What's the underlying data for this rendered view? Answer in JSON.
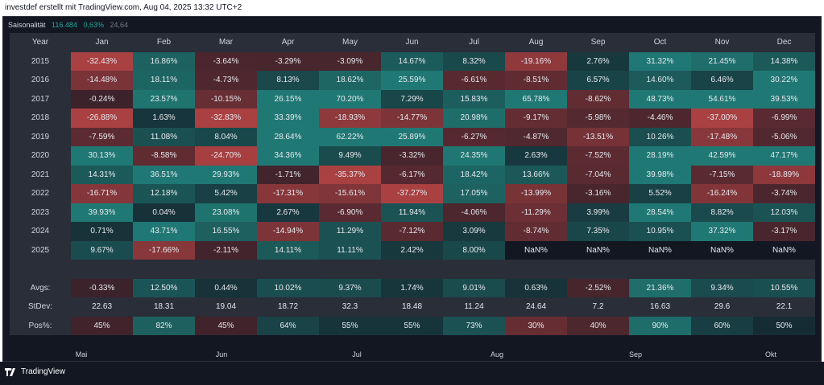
{
  "header": {
    "text": "investdef erstellt mit TradingView.com, Aug 04, 2025 13:32 UTC+2"
  },
  "legend": {
    "name": "Saisonalität",
    "v1": "116.484",
    "v2": "0,63%",
    "v3": "24,64"
  },
  "table": {
    "corner": "Year",
    "months": [
      "Jan",
      "Feb",
      "Mar",
      "Apr",
      "May",
      "Jun",
      "Jul",
      "Aug",
      "Sep",
      "Oct",
      "Nov",
      "Dec"
    ],
    "rows": [
      {
        "year": "2015",
        "cells": [
          "-32.43%",
          "16.86%",
          "-3.64%",
          "-3.29%",
          "-3.09%",
          "14.67%",
          "8.32%",
          "-19.16%",
          "2.76%",
          "31.32%",
          "21.45%",
          "14.38%"
        ]
      },
      {
        "year": "2016",
        "cells": [
          "-14.48%",
          "18.11%",
          "-4.73%",
          "8.13%",
          "18.62%",
          "25.59%",
          "-6.61%",
          "-8.51%",
          "6.57%",
          "14.60%",
          "6.46%",
          "30.22%"
        ]
      },
      {
        "year": "2017",
        "cells": [
          "-0.24%",
          "23.57%",
          "-10.15%",
          "26.15%",
          "70.20%",
          "7.29%",
          "15.83%",
          "65.78%",
          "-8.62%",
          "48.73%",
          "54.61%",
          "39.53%"
        ]
      },
      {
        "year": "2018",
        "cells": [
          "-26.88%",
          "1.63%",
          "-32.83%",
          "33.39%",
          "-18.93%",
          "-14.77%",
          "20.98%",
          "-9.17%",
          "-5.98%",
          "-4.46%",
          "-37.00%",
          "-6.99%"
        ]
      },
      {
        "year": "2019",
        "cells": [
          "-7.59%",
          "11.08%",
          "8.04%",
          "28.64%",
          "62.22%",
          "25.89%",
          "-6.27%",
          "-4.87%",
          "-13.51%",
          "10.26%",
          "-17.48%",
          "-5.06%"
        ]
      },
      {
        "year": "2020",
        "cells": [
          "30.13%",
          "-8.58%",
          "-24.70%",
          "34.36%",
          "9.49%",
          "-3.32%",
          "24.35%",
          "2.63%",
          "-7.52%",
          "28.19%",
          "42.59%",
          "47.17%"
        ]
      },
      {
        "year": "2021",
        "cells": [
          "14.31%",
          "36.51%",
          "29.93%",
          "-1.71%",
          "-35.37%",
          "-6.17%",
          "18.42%",
          "13.66%",
          "-7.04%",
          "39.98%",
          "-7.15%",
          "-18.89%"
        ]
      },
      {
        "year": "2022",
        "cells": [
          "-16.71%",
          "12.18%",
          "5.42%",
          "-17.31%",
          "-15.61%",
          "-37.27%",
          "17.05%",
          "-13.99%",
          "-3.16%",
          "5.52%",
          "-16.24%",
          "-3.74%"
        ]
      },
      {
        "year": "2023",
        "cells": [
          "39.93%",
          "0.04%",
          "23.08%",
          "2.67%",
          "-6.90%",
          "11.94%",
          "-4.06%",
          "-11.29%",
          "3.99%",
          "28.54%",
          "8.82%",
          "12.03%"
        ]
      },
      {
        "year": "2024",
        "cells": [
          "0.71%",
          "43.71%",
          "16.55%",
          "-14.94%",
          "11.29%",
          "-7.12%",
          "3.09%",
          "-8.74%",
          "7.35%",
          "10.95%",
          "37.32%",
          "-3.17%"
        ]
      },
      {
        "year": "2025",
        "cells": [
          "9.67%",
          "-17.66%",
          "-2.11%",
          "14.11%",
          "11.11%",
          "2.42%",
          "8.00%",
          "NaN%",
          "NaN%",
          "NaN%",
          "NaN%",
          "NaN%"
        ]
      }
    ],
    "stats": [
      {
        "label": "Avgs:",
        "cells": [
          "-0.33%",
          "12.50%",
          "0.44%",
          "10.02%",
          "9.37%",
          "1.74%",
          "9.01%",
          "0.63%",
          "-2.52%",
          "21.36%",
          "9.34%",
          "10.55%"
        ]
      },
      {
        "label": "StDev:",
        "cells": [
          "22.63",
          "18.31",
          "19.04",
          "18.72",
          "32.3",
          "18.48",
          "11.24",
          "24.64",
          "7.2",
          "16.63",
          "29.6",
          "22.1"
        ]
      },
      {
        "label": "Pos%:",
        "cells": [
          "45%",
          "82%",
          "45%",
          "64%",
          "55%",
          "55%",
          "73%",
          "30%",
          "40%",
          "90%",
          "60%",
          "50%"
        ]
      }
    ]
  },
  "xaxis": {
    "labels": [
      "Mai",
      "Jun",
      "Jul",
      "Aug",
      "Sep",
      "Okt"
    ]
  },
  "footer": {
    "brand": "TradingView"
  },
  "colors": {
    "background": "#131722",
    "header_cell": "#2a2e39",
    "positive": "#26a69a",
    "negative": "#ef5350",
    "nan": "#131722"
  }
}
